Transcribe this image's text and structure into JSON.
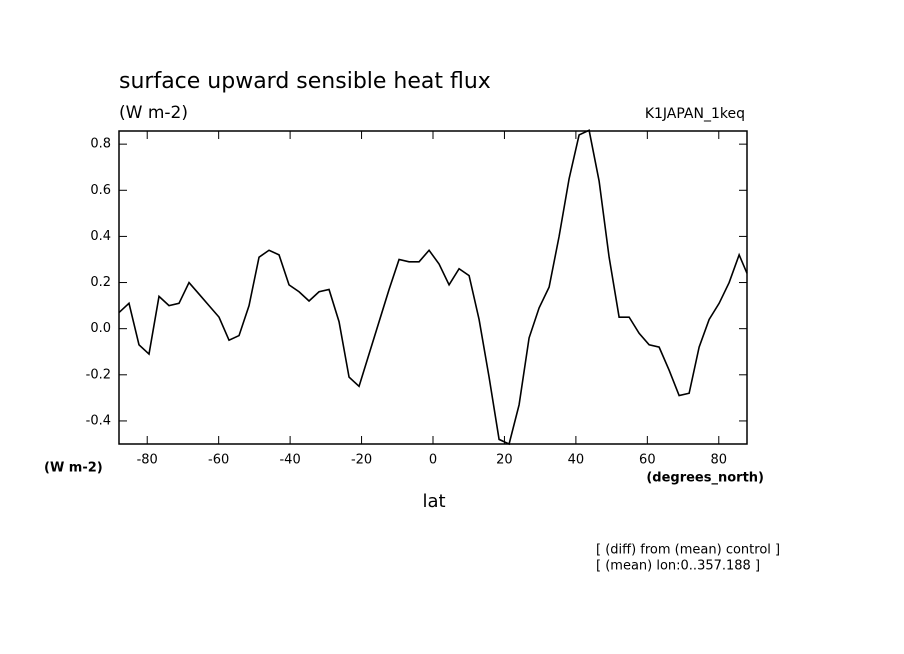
{
  "chart_data": {
    "type": "line",
    "title": "surface upward sensible heat flux",
    "subtitle": "(W m-2)",
    "run_label": "K1JAPAN_1keq",
    "y_unit_label": "(W m-2)",
    "x_unit_label": "(degrees_north)",
    "x_label": "lat",
    "notes": [
      "[ (diff) from (mean) control ]",
      "[ (mean) lon:0..357.188 ]"
    ],
    "x": [
      -87.9,
      -85.1,
      -82.3,
      -79.5,
      -76.7,
      -73.9,
      -71.1,
      -68.3,
      -65.5,
      -62.7,
      -59.9,
      -57.1,
      -54.3,
      -51.5,
      -48.7,
      -45.9,
      -43.1,
      -40.3,
      -37.5,
      -34.7,
      -31.9,
      -29.1,
      -26.3,
      -23.5,
      -20.7,
      -17.9,
      -15.1,
      -12.3,
      -9.5,
      -6.7,
      -3.9,
      -1.1,
      1.7,
      4.5,
      7.3,
      10.1,
      12.9,
      15.7,
      18.5,
      21.3,
      24.1,
      26.9,
      29.7,
      32.5,
      35.3,
      38.1,
      40.9,
      43.7,
      46.5,
      49.3,
      52.1,
      54.9,
      57.7,
      60.5,
      63.3,
      66.1,
      68.9,
      71.7,
      74.5,
      77.3,
      80.1,
      82.9,
      85.7,
      87.9
    ],
    "series": [
      {
        "name": "diff",
        "color": "#000000",
        "values": [
          0.07,
          0.11,
          -0.07,
          -0.11,
          0.14,
          0.1,
          0.11,
          0.2,
          0.15,
          0.1,
          0.05,
          -0.05,
          -0.03,
          0.1,
          0.31,
          0.34,
          0.32,
          0.19,
          0.16,
          0.12,
          0.16,
          0.17,
          0.03,
          -0.21,
          -0.25,
          -0.11,
          0.03,
          0.17,
          0.3,
          0.29,
          0.29,
          0.34,
          0.28,
          0.19,
          0.26,
          0.23,
          0.04,
          -0.21,
          -0.48,
          -0.5,
          -0.33,
          -0.04,
          0.09,
          0.18,
          0.4,
          0.65,
          0.84,
          0.86,
          0.64,
          0.31,
          0.05,
          0.05,
          -0.02,
          -0.07,
          -0.08,
          -0.18,
          -0.29,
          -0.28,
          -0.08,
          0.04,
          0.11,
          0.2,
          0.32,
          0.24
        ]
      }
    ],
    "xlim": [
      -87.9,
      87.9
    ],
    "xticks": [
      -80,
      -60,
      -40,
      -20,
      0,
      20,
      40,
      60,
      80
    ],
    "ylim": [
      -0.5,
      0.857
    ],
    "yticks": [
      -0.4,
      -0.2,
      {
        "value": 0,
        "label": "0.0"
      },
      0.2,
      0.4,
      0.6,
      0.8
    ]
  }
}
